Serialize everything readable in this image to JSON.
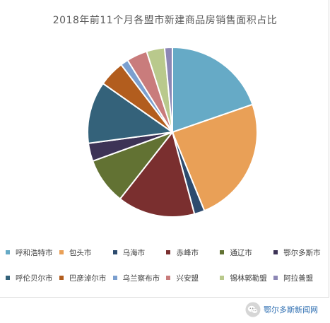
{
  "chart_data": {
    "type": "pie",
    "title": "2018年前11个月各盟市新建商品房销售面积占比",
    "legend_position": "bottom",
    "slices": [
      {
        "name": "呼和浩特市",
        "value": 20.0,
        "color": "#66aac6"
      },
      {
        "name": "包头市",
        "value": 24.5,
        "color": "#e9a057"
      },
      {
        "name": "乌海市",
        "value": 2.0,
        "color": "#2d4b6e"
      },
      {
        "name": "赤峰市",
        "value": 15.0,
        "color": "#7a2f2f"
      },
      {
        "name": "通辽市",
        "value": 9.0,
        "color": "#627233"
      },
      {
        "name": "鄂尔多斯市",
        "value": 3.5,
        "color": "#3d3356"
      },
      {
        "name": "呼伦贝尔市",
        "value": 12.0,
        "color": "#34627a"
      },
      {
        "name": "巴彦淖尔市",
        "value": 5.0,
        "color": "#b25d1e"
      },
      {
        "name": "乌兰察布市",
        "value": 1.5,
        "color": "#7b9fcf"
      },
      {
        "name": "兴安盟",
        "value": 4.0,
        "color": "#c97c7c"
      },
      {
        "name": "锡林郭勒盟",
        "value": 3.5,
        "color": "#b9c98c"
      },
      {
        "name": "阿拉善盟",
        "value": 1.5,
        "color": "#8d87b5"
      }
    ]
  },
  "watermark": {
    "text": "鄂尔多斯新闻网",
    "icon": "wechat-icon"
  }
}
